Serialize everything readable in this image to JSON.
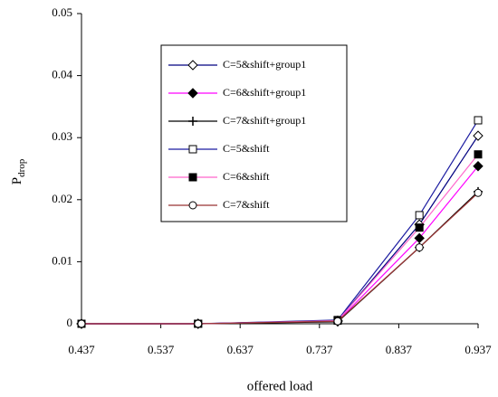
{
  "chart_data": {
    "type": "line",
    "x_label": "offered load",
    "y_label": "P",
    "y_label_subscript": "drop",
    "x": [
      0.437,
      0.584,
      0.76,
      0.863,
      0.937
    ],
    "xlim": [
      0.437,
      0.937
    ],
    "xticks": [
      0.437,
      0.537,
      0.637,
      0.737,
      0.837,
      0.937
    ],
    "ylim": [
      0,
      0.05
    ],
    "yticks": [
      0,
      0.01,
      0.02,
      0.03,
      0.04,
      0.05
    ],
    "series": [
      {
        "name": "C=5&shift+group1",
        "color": "#000080",
        "marker": "diamond-open",
        "values": [
          0,
          0,
          0.0005,
          0.016,
          0.0303
        ]
      },
      {
        "name": "C=6&shift+group1",
        "color": "#ff00ff",
        "marker": "diamond-filled",
        "values": [
          0,
          0,
          0.0004,
          0.0138,
          0.0254
        ]
      },
      {
        "name": "C=7&shift+group1",
        "color": "#000000",
        "marker": "plus",
        "values": [
          0,
          0,
          0.0003,
          0.0123,
          0.0213
        ]
      },
      {
        "name": "C=5&shift",
        "color": "#1a1aa0",
        "marker": "square-open",
        "values": [
          0,
          0,
          0.0006,
          0.0175,
          0.0328
        ]
      },
      {
        "name": "C=6&shift",
        "color": "#ff66cc",
        "marker": "square-filled",
        "values": [
          0,
          0,
          0.0005,
          0.0155,
          0.0273
        ]
      },
      {
        "name": "C=7&shift",
        "color": "#993333",
        "marker": "circle-open",
        "values": [
          0,
          0,
          0.0004,
          0.0123,
          0.0211
        ]
      }
    ]
  }
}
